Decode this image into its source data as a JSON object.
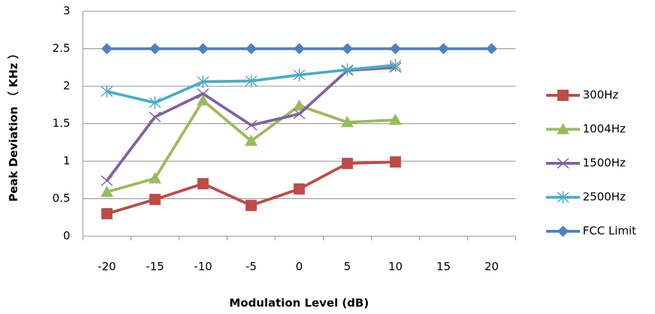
{
  "chart_data": {
    "type": "line",
    "x_label": "Modulation Level (dB)",
    "y_label": "Peak Deviation （ KHz ）",
    "categories": [
      -20,
      -15,
      -10,
      -5,
      0,
      5,
      10,
      15,
      20
    ],
    "ylim": [
      0,
      3
    ],
    "yticks": [
      0,
      0.5,
      1,
      1.5,
      2,
      2.5,
      3
    ],
    "grid": true,
    "series": [
      {
        "name": "300Hz",
        "color": "#be4b48",
        "marker": "square",
        "values": [
          0.3,
          0.49,
          0.7,
          0.41,
          0.63,
          0.97,
          0.99,
          null,
          null
        ]
      },
      {
        "name": "1004Hz",
        "color": "#9bbb59",
        "marker": "triangle",
        "values": [
          0.59,
          0.77,
          1.81,
          1.27,
          1.74,
          1.52,
          1.55,
          null,
          null
        ]
      },
      {
        "name": "1500Hz",
        "color": "#7f63a2",
        "marker": "x",
        "values": [
          0.74,
          1.59,
          1.9,
          1.48,
          1.63,
          2.21,
          2.25,
          null,
          null
        ]
      },
      {
        "name": "2500Hz",
        "color": "#4bacc6",
        "marker": "asterisk",
        "values": [
          1.93,
          1.78,
          2.06,
          2.07,
          2.15,
          2.22,
          2.28,
          null,
          null
        ]
      },
      {
        "name": "FCC Limit",
        "color": "#4f81bd",
        "marker": "diamond",
        "values": [
          2.5,
          2.5,
          2.5,
          2.5,
          2.5,
          2.5,
          2.5,
          2.5,
          2.5
        ]
      }
    ]
  }
}
